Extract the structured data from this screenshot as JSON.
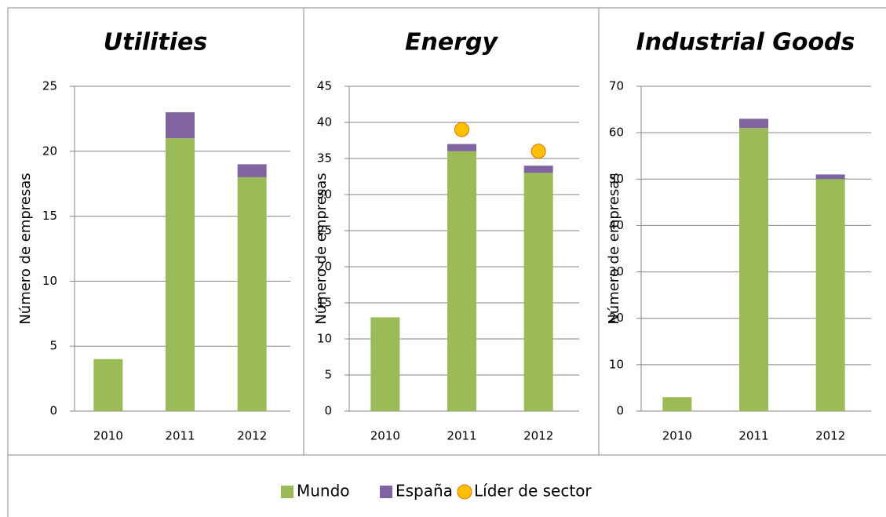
{
  "chart_data": [
    {
      "type": "bar",
      "title": "Utilities",
      "y_label": "Número de empresas",
      "categories": [
        "2010",
        "2011",
        "2012"
      ],
      "series": [
        {
          "name": "Mundo",
          "color": "#9bbb59",
          "values": [
            4,
            21,
            18
          ]
        },
        {
          "name": "España",
          "color": "#8064a2",
          "values": [
            0,
            2,
            1
          ]
        }
      ],
      "ylim": [
        0,
        25
      ],
      "yticks": [
        0,
        5,
        10,
        15,
        20,
        25
      ],
      "grid": true,
      "stacked": true
    },
    {
      "type": "bar",
      "title": "Energy",
      "y_label": "Número de empresas",
      "categories": [
        "2010",
        "2011",
        "2012"
      ],
      "series": [
        {
          "name": "Mundo",
          "color": "#9bbb59",
          "values": [
            13,
            36,
            33
          ]
        },
        {
          "name": "España",
          "color": "#8064a2",
          "values": [
            0,
            1,
            1
          ]
        },
        {
          "name": "Líder de sector",
          "color": "#ffc000",
          "type": "scatter",
          "values": [
            null,
            39,
            36
          ]
        }
      ],
      "ylim": [
        0,
        45
      ],
      "yticks": [
        0,
        5,
        10,
        15,
        20,
        25,
        30,
        35,
        40,
        45
      ],
      "grid": true,
      "stacked": true
    },
    {
      "type": "bar",
      "title": "Industrial Goods",
      "y_label": "Número de empresas",
      "categories": [
        "2010",
        "2011",
        "2012"
      ],
      "series": [
        {
          "name": "Mundo",
          "color": "#9bbb59",
          "values": [
            3,
            61,
            50
          ]
        },
        {
          "name": "España",
          "color": "#8064a2",
          "values": [
            0,
            2,
            1
          ]
        }
      ],
      "ylim": [
        0,
        70
      ],
      "yticks": [
        0,
        10,
        20,
        30,
        40,
        50,
        60,
        70
      ],
      "grid": true,
      "stacked": true
    }
  ]
}
